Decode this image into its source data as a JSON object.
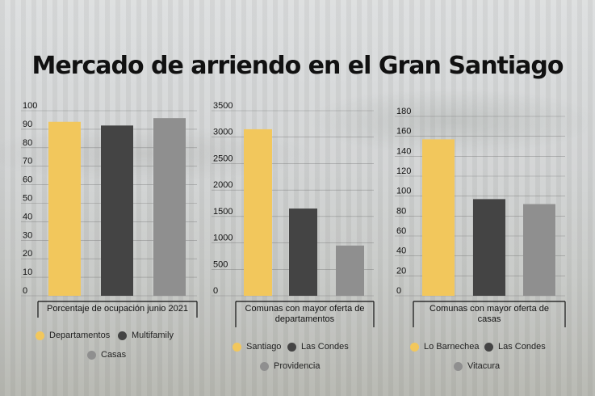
{
  "title": "Mercado de arriendo en el Gran Santiago",
  "colors": {
    "yellow": "#f2c75c",
    "dark": "#444444",
    "gray": "#8f8f8f"
  },
  "chart_data": [
    {
      "type": "bar",
      "xlabel": "Porcentaje de ocupación junio 2021",
      "ylim": [
        0,
        100
      ],
      "ticks": [
        "0",
        "10",
        "20",
        "30",
        "40",
        "50",
        "60",
        "70",
        "80",
        "90",
        "100"
      ],
      "tick_values": [
        0,
        10,
        20,
        30,
        40,
        50,
        60,
        70,
        80,
        90,
        100
      ],
      "categories": [
        "Departamentos",
        "Multifamily",
        "Casas"
      ],
      "values": [
        94,
        92,
        96
      ]
    },
    {
      "type": "bar",
      "xlabel": "Comunas con mayor oferta de departamentos",
      "ylim": [
        0,
        3500
      ],
      "ticks": [
        "0",
        "500",
        "1000",
        "1500",
        "2000",
        "2500",
        "3000",
        "3500"
      ],
      "tick_values": [
        0,
        500,
        1000,
        1500,
        2000,
        2500,
        3000,
        3500
      ],
      "categories": [
        "Santiago",
        "Las Condes",
        "Providencia"
      ],
      "values": [
        3150,
        1650,
        950
      ]
    },
    {
      "type": "bar",
      "xlabel": "Comunas con mayor oferta de casas",
      "ylim": [
        0,
        180
      ],
      "ticks": [
        "0",
        "20",
        "40",
        "60",
        "80",
        "100",
        "120",
        "140",
        "160",
        "180"
      ],
      "tick_values": [
        0,
        20,
        40,
        60,
        80,
        100,
        120,
        140,
        160,
        180
      ],
      "categories": [
        "Lo Barnechea",
        "Las Condes",
        "Vitacura"
      ],
      "values": [
        157,
        97,
        92
      ]
    }
  ]
}
